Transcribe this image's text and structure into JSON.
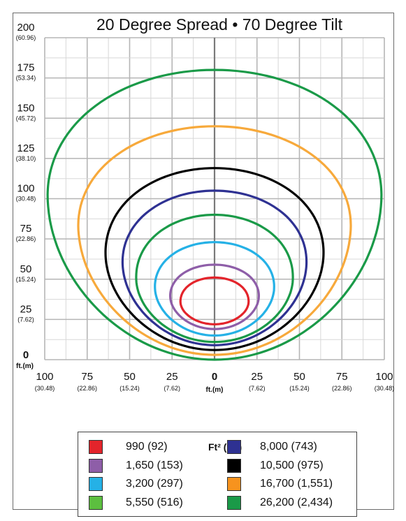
{
  "chart_data": {
    "type": "line",
    "title": "20 Degree Spread • 70 Degree Tilt",
    "x_axis": {
      "range": [
        -100,
        100
      ],
      "ticks": [
        -100,
        -75,
        -50,
        -25,
        0,
        25,
        50,
        75,
        100
      ],
      "tick_labels": [
        "100",
        "75",
        "50",
        "25",
        "0",
        "25",
        "50",
        "75",
        "100"
      ],
      "tick_sublabels": [
        "(30.48)",
        "(22.86)",
        "(15.24)",
        "(7.62)",
        "",
        "(7.62)",
        "(15.24)",
        "(22.86)",
        "(30.48)"
      ],
      "unit_label": "ft.(m)"
    },
    "y_axis": {
      "range": [
        0,
        200
      ],
      "ticks": [
        0,
        25,
        50,
        75,
        100,
        125,
        150,
        175,
        200
      ],
      "tick_labels": [
        "0",
        "25",
        "50",
        "75",
        "100",
        "125",
        "150",
        "175",
        "200"
      ],
      "tick_sublabels": [
        "",
        "(7.62)",
        "(15.24)",
        "(22.86)",
        "(30.48)",
        "(38.10)",
        "(45.72)",
        "(53.34)",
        "(60.96)"
      ],
      "unit_label": "ft.(m)"
    },
    "grid": true,
    "legend_title": "Ft² (m²)",
    "legend_position": "bottom",
    "series": [
      {
        "name": "990 (92)",
        "color": "#e3242b",
        "top": 51,
        "bottom": 22,
        "center": 35,
        "halfwidth": 20
      },
      {
        "name": "1,650 (153)",
        "color": "#8e5ea8",
        "top": 59,
        "bottom": 19,
        "center": 38,
        "halfwidth": 26
      },
      {
        "name": "3,200 (297)",
        "color": "#25b1e6",
        "top": 73,
        "bottom": 15,
        "center": 43,
        "halfwidth": 35
      },
      {
        "name": "5,550 (516)",
        "color": "#1a9a48",
        "top": 90,
        "bottom": 11,
        "center": 48,
        "halfwidth": 46
      },
      {
        "name": "8,000 (743)",
        "color": "#2e3192",
        "top": 105,
        "bottom": 9,
        "center": 57,
        "halfwidth": 54
      },
      {
        "name": "10,500 (975)",
        "color": "#000000",
        "top": 119,
        "bottom": 6,
        "center": 62,
        "halfwidth": 64
      },
      {
        "name": "16,700 (1,551)",
        "color": "#f7a93b",
        "top": 145,
        "bottom": 3,
        "center": 78,
        "halfwidth": 80
      },
      {
        "name": "26,200 (2,434)",
        "color": "#1a9a48",
        "top": 180,
        "bottom": 0,
        "center": 95,
        "halfwidth": 98
      }
    ]
  },
  "legend_colors": [
    "#e3242b",
    "#8e5ea8",
    "#25b1e6",
    "#5cbf3f",
    "#2e3192",
    "#000000",
    "#f7931e",
    "#1a9a48"
  ]
}
